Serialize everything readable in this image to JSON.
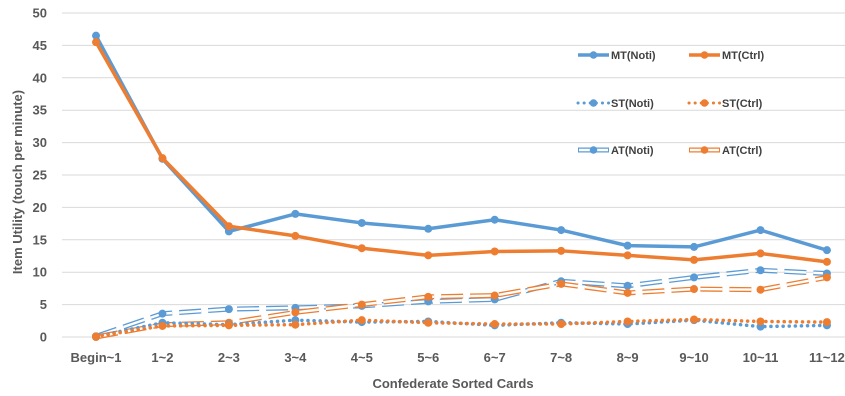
{
  "chart_data": {
    "type": "line",
    "title": "",
    "xlabel": "Confederate Sorted Cards",
    "ylabel": "Item Utility (touch per minute)",
    "ylim": [
      0,
      50
    ],
    "yticks": [
      0,
      5,
      10,
      15,
      20,
      25,
      30,
      35,
      40,
      45,
      50
    ],
    "grid": true,
    "legend_position": "right",
    "categories": [
      "Begin~1",
      "1~2",
      "2~3",
      "3~4",
      "4~5",
      "5~6",
      "6~7",
      "7~8",
      "8~9",
      "9~10",
      "10~11",
      "11~12"
    ],
    "series": [
      {
        "name": "MT(Noti)",
        "color": "#5b9bd5",
        "style": "solid",
        "values": [
          46.5,
          27.5,
          16.3,
          19.0,
          17.6,
          16.7,
          18.1,
          16.5,
          14.1,
          13.9,
          16.5,
          13.4
        ]
      },
      {
        "name": "MT(Ctrl)",
        "color": "#ed7d31",
        "style": "solid",
        "values": [
          45.5,
          27.6,
          17.1,
          15.6,
          13.7,
          12.6,
          13.2,
          13.3,
          12.6,
          11.9,
          12.9,
          11.6
        ]
      },
      {
        "name": "ST(Noti)",
        "color": "#5b9bd5",
        "style": "dotted",
        "values": [
          0.1,
          2.2,
          1.9,
          2.6,
          2.3,
          2.4,
          1.8,
          2.2,
          2.0,
          2.6,
          1.6,
          1.8
        ]
      },
      {
        "name": "ST(Ctrl)",
        "color": "#ed7d31",
        "style": "dotted",
        "values": [
          0.1,
          1.7,
          1.8,
          1.9,
          2.6,
          2.2,
          2.0,
          2.0,
          2.4,
          2.7,
          2.4,
          2.3
        ]
      },
      {
        "name": "AT(Noti)",
        "color": "#5b9bd5",
        "style": "outlined-dash",
        "values": [
          0.1,
          3.6,
          4.3,
          4.5,
          4.8,
          5.5,
          5.8,
          8.6,
          7.9,
          9.2,
          10.3,
          9.8
        ]
      },
      {
        "name": "AT(Ctrl)",
        "color": "#ed7d31",
        "style": "outlined-dash",
        "values": [
          0.0,
          1.9,
          2.2,
          3.8,
          5.0,
          6.2,
          6.4,
          8.2,
          6.8,
          7.4,
          7.3,
          9.2
        ]
      }
    ]
  }
}
